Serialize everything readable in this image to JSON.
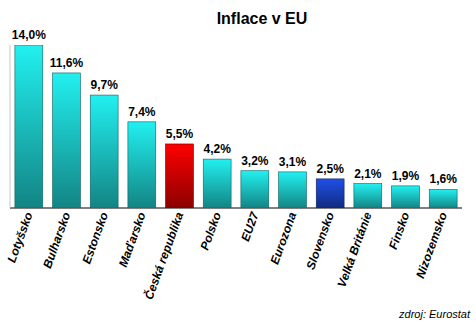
{
  "chart_data": {
    "type": "bar",
    "title": "Inflace v EU",
    "categories": [
      "Lotyšsko",
      "Bulharsko",
      "Estonsko",
      "Maďarsko",
      "Česká republika",
      "Polsko",
      "EU27",
      "Eurozona",
      "Slovensko",
      "Velká Británie",
      "Finsko",
      "Nizozemsko"
    ],
    "values": [
      14.0,
      11.6,
      9.7,
      7.4,
      5.5,
      4.2,
      3.2,
      3.1,
      2.5,
      2.1,
      1.9,
      1.6
    ],
    "value_labels": [
      "14,0%",
      "11,6%",
      "9,7%",
      "7,4%",
      "5,5%",
      "4,2%",
      "3,2%",
      "3,1%",
      "2,5%",
      "2,1%",
      "1,9%",
      "1,6%"
    ],
    "colors": [
      "#22f0f0",
      "#22f0f0",
      "#22f0f0",
      "#22f0f0",
      "#ff0000",
      "#22f0f0",
      "#22f0f0",
      "#22f0f0",
      "#1f4fe8",
      "#22f0f0",
      "#22f0f0",
      "#22f0f0"
    ],
    "ylim": [
      0,
      14
    ],
    "data_labels": true,
    "tick_labels": "x",
    "grid": false,
    "annotations": [
      "zdroj: Eurostat"
    ]
  }
}
